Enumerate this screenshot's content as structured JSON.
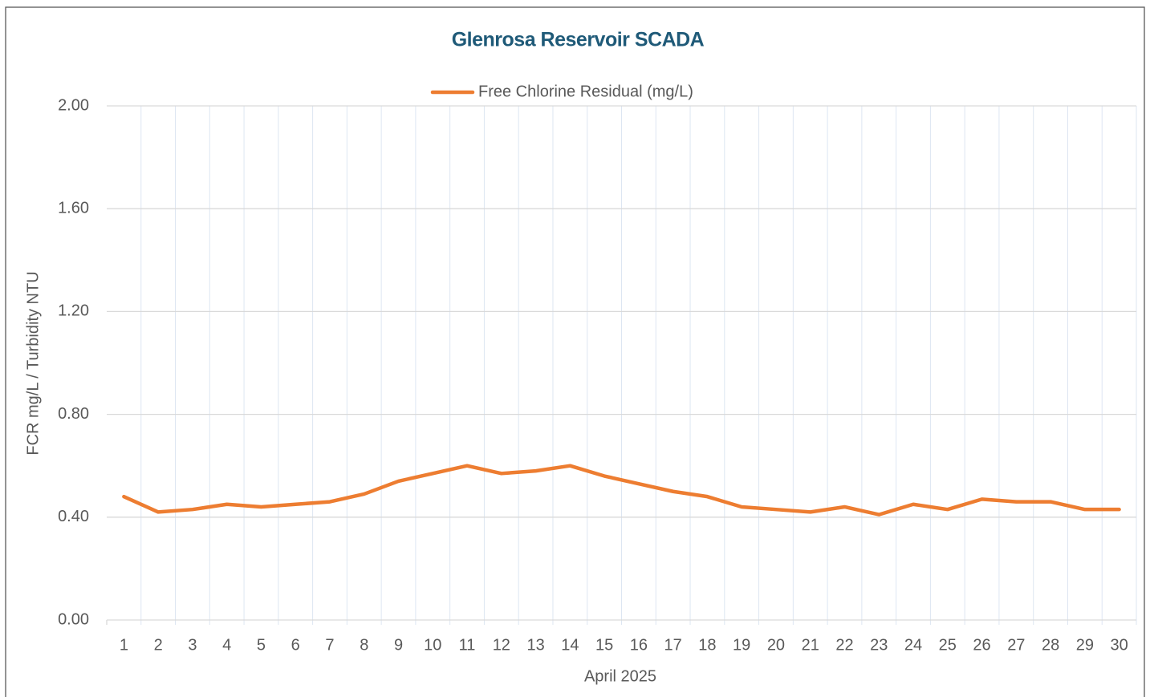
{
  "chart_data": {
    "type": "line",
    "title": "Glenrosa Reservoir SCADA",
    "y_label": "FCR mg/L / Turbidity NTU",
    "x_label": "April 2025",
    "categories": [
      "1",
      "2",
      "3",
      "4",
      "5",
      "6",
      "7",
      "8",
      "9",
      "10",
      "11",
      "12",
      "13",
      "14",
      "15",
      "16",
      "17",
      "18",
      "19",
      "20",
      "21",
      "22",
      "23",
      "24",
      "25",
      "26",
      "27",
      "28",
      "29",
      "30"
    ],
    "series": [
      {
        "name": "Free Chlorine Residual (mg/L)",
        "color": "#ed7d31",
        "values": [
          0.48,
          0.42,
          0.43,
          0.45,
          0.44,
          0.45,
          0.46,
          0.49,
          0.54,
          0.57,
          0.6,
          0.57,
          0.58,
          0.6,
          0.56,
          0.53,
          0.5,
          0.48,
          0.44,
          0.43,
          0.42,
          0.44,
          0.41,
          0.45,
          0.43,
          0.47,
          0.46,
          0.46,
          0.43,
          0.43
        ]
      }
    ],
    "ylim": [
      0,
      2
    ],
    "yticks": [
      {
        "value": 0,
        "label": "0.00"
      },
      {
        "value": 0.4,
        "label": "0.40"
      },
      {
        "value": 0.8,
        "label": "0.80"
      },
      {
        "value": 1.2,
        "label": "1.20"
      },
      {
        "value": 1.6,
        "label": "1.60"
      },
      {
        "value": 2,
        "label": "2.00"
      }
    ],
    "grid": true,
    "legend": "top"
  }
}
